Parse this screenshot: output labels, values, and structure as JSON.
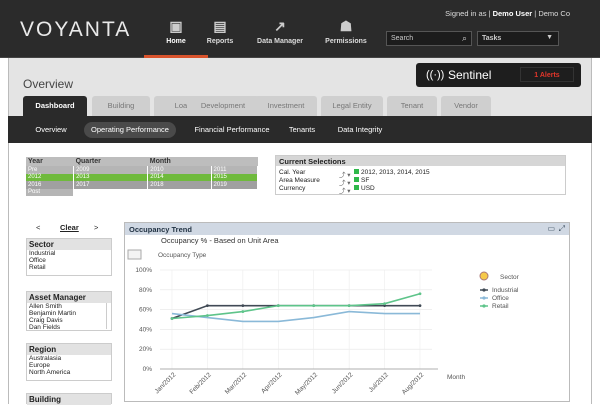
{
  "header": {
    "logo": "VOYANTA",
    "signed_in_prefix": "Signed in as |",
    "user": "Demo User",
    "company": "| Demo Co",
    "nav": [
      {
        "label": "Home",
        "icon": "briefcase-icon",
        "glyph": "💼"
      },
      {
        "label": "Reports",
        "icon": "report-icon",
        "glyph": "▤"
      },
      {
        "label": "Data Manager",
        "icon": "chart-line-icon",
        "glyph": "↗"
      },
      {
        "label": "Permissions",
        "icon": "users-icon",
        "glyph": "👥"
      }
    ],
    "search_label": "Search",
    "tasks_label": "Tasks"
  },
  "overview": {
    "title": "Overview",
    "sentinel_label": "Sentinel",
    "alerts": "1 Alerts"
  },
  "tabs": [
    "Dashboard",
    "Building",
    "Loan",
    "Development",
    "Investment",
    "Legal Entity",
    "Tenant",
    "Vendor"
  ],
  "subtabs": [
    "Overview",
    "Operating Performance",
    "Financial Performance",
    "Tenants",
    "Data Integrity"
  ],
  "period": {
    "headers": [
      "Year",
      "Quarter",
      "Month"
    ],
    "rows": [
      {
        "year": "Pre",
        "q": "2009",
        "m": "2010",
        "extra": "2011",
        "color": "#b5b5b5"
      },
      {
        "year": "2012",
        "q": "2013",
        "m": "2014",
        "extra": "2015",
        "color": "#6fba3c"
      },
      {
        "year": "2016",
        "q": "2017",
        "m": "2018",
        "extra": "2019",
        "color": "#a0a0a0"
      },
      {
        "year": "Post",
        "q": "",
        "m": "",
        "extra": "",
        "color": "#b5b5b5"
      }
    ]
  },
  "current_selections": {
    "title": "Current Selections",
    "items": [
      {
        "label": "Cal. Year",
        "value": "2012, 2013, 2014, 2015"
      },
      {
        "label": "Area Measure",
        "value": "SF"
      },
      {
        "label": "Currency",
        "value": "USD"
      }
    ]
  },
  "filters": {
    "clear_label": "Clear",
    "prev": "<",
    "next": ">",
    "sector": {
      "title": "Sector",
      "items": [
        "Industrial",
        "Office",
        "Retail"
      ]
    },
    "asset_manager": {
      "title": "Asset Manager",
      "items": [
        "Allen Smith",
        "Benjamin Martin",
        "Craig Davis",
        "Dan Fields"
      ]
    },
    "region": {
      "title": "Region",
      "items": [
        "Australasia",
        "Europe",
        "North America"
      ]
    },
    "building": {
      "title": "Building"
    }
  },
  "occupancy": {
    "panel_title": "Occupancy Trend",
    "chart_title": "Occupancy % - Based on Unit Area",
    "subtitle": "Occupancy Type",
    "legend_title": "Sector",
    "x_axis_label": "Month"
  },
  "chart_data": {
    "type": "line",
    "title": "Occupancy % - Based on Unit Area",
    "xlabel": "Month",
    "ylabel": "",
    "ylim": [
      0,
      100
    ],
    "yticks": [
      "0%",
      "20%",
      "40%",
      "60%",
      "80%",
      "100%"
    ],
    "categories": [
      "Jan/2012",
      "Feb/2012",
      "Mar/2012",
      "Apr/2012",
      "May/2012",
      "Jun/2012",
      "Jul/2012",
      "Aug/2012"
    ],
    "series": [
      {
        "name": "Industrial",
        "color": "#404a55",
        "values": [
          51,
          64,
          64,
          64,
          64,
          64,
          64,
          64
        ]
      },
      {
        "name": "Office",
        "color": "#8ab9d8",
        "values": [
          56,
          52,
          48,
          48,
          52,
          58,
          56,
          56
        ]
      },
      {
        "name": "Retail",
        "color": "#5ec48a",
        "values": [
          51,
          54,
          58,
          64,
          64,
          64,
          66,
          76
        ]
      }
    ]
  }
}
